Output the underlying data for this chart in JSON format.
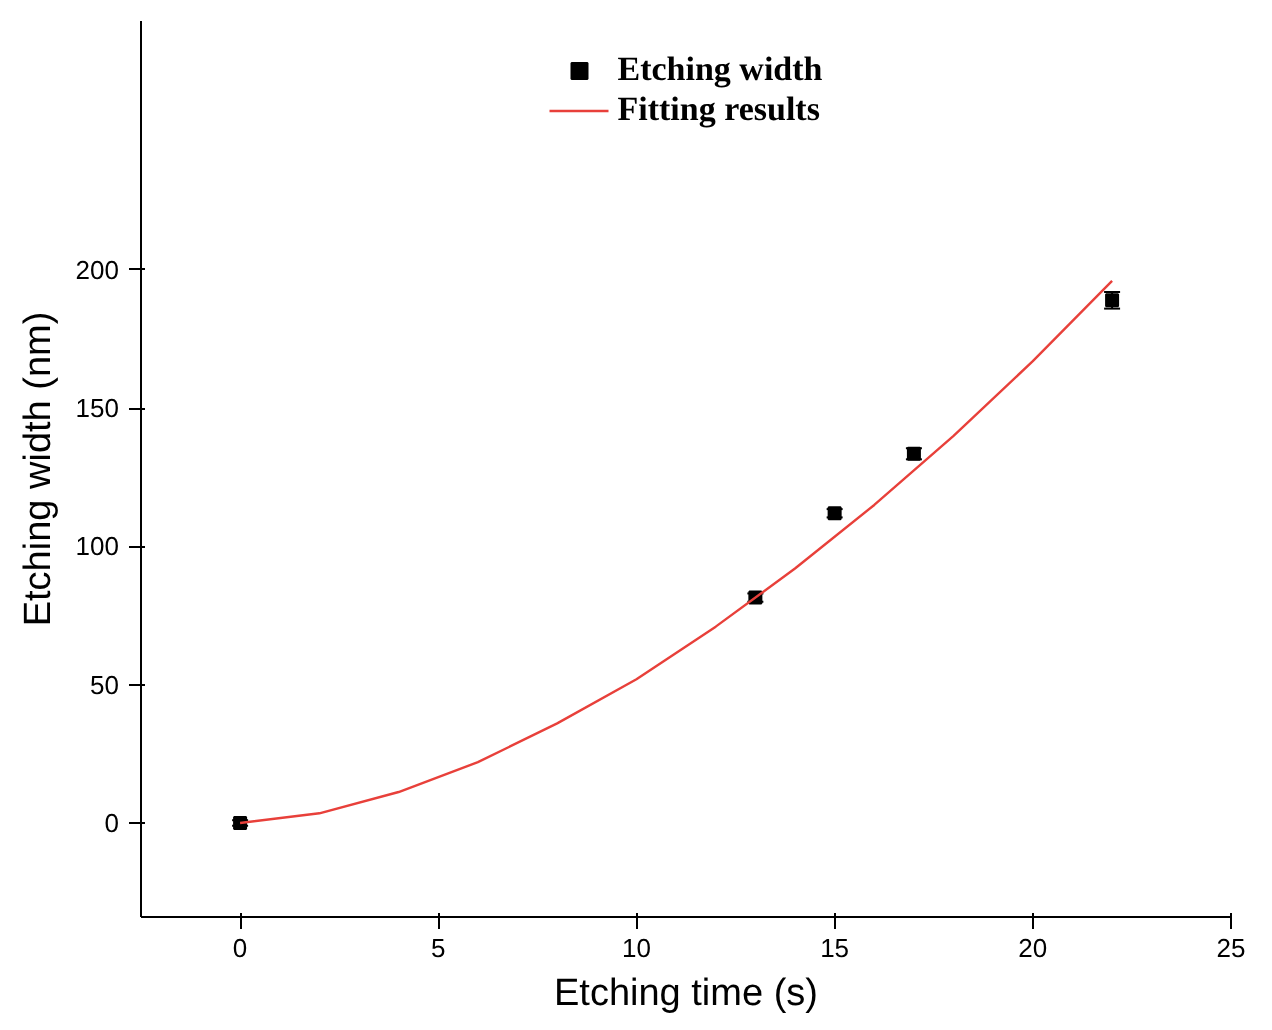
{
  "chart_data": {
    "type": "scatter",
    "xlabel": "Etching time (s)",
    "ylabel": "Etching width (nm)",
    "xlim": [
      -2.5,
      25
    ],
    "xticks": [
      0,
      5,
      10,
      15,
      20,
      25
    ],
    "ylim": [
      -34,
      290
    ],
    "yticks": [
      0,
      50,
      100,
      150,
      200
    ],
    "grid": false,
    "legend": "top",
    "marker": "square",
    "series": [
      {
        "name": "Etching width",
        "color": "#000000",
        "x": [
          0,
          13,
          15,
          17,
          22
        ],
        "values": [
          0,
          81.5,
          112,
          133.5,
          189
        ],
        "errors": [
          1,
          1.5,
          1.5,
          2,
          3
        ]
      },
      {
        "name": "Fitting results",
        "type": "line",
        "marker": "none",
        "color": "#e8403a",
        "x": [
          0,
          2,
          4,
          6,
          8,
          10,
          12,
          14,
          16,
          18,
          20,
          22
        ],
        "values": [
          0,
          3.5,
          11.2,
          22,
          36,
          52,
          71,
          92,
          115,
          140,
          167,
          196
        ]
      }
    ]
  }
}
